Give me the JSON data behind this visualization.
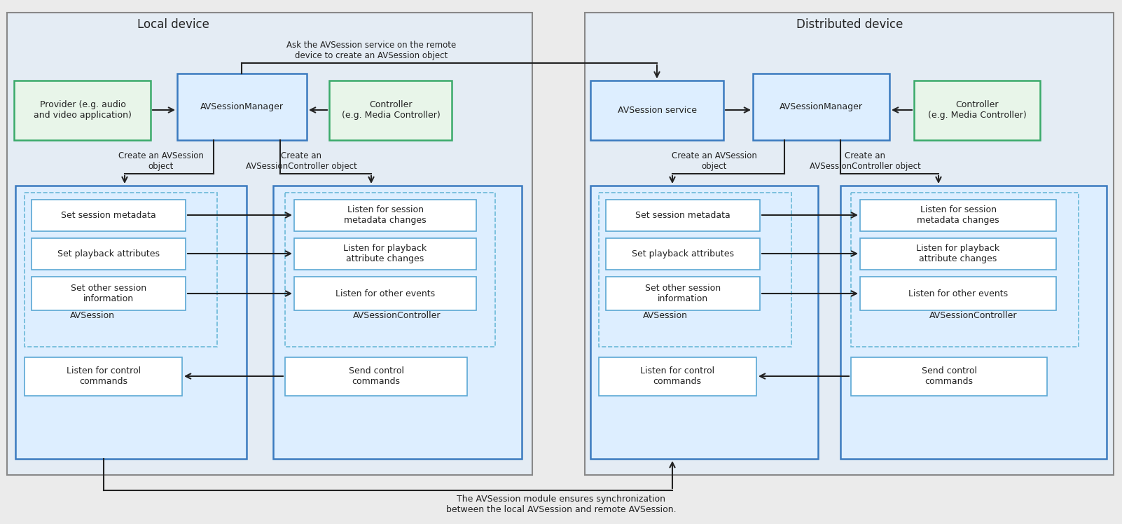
{
  "bg_color": "#ebebeb",
  "outer_fill": "#e4ecf4",
  "outer_edge": "#888888",
  "blue_fill": "#ddeeff",
  "blue_fill_mid": "#cce4f7",
  "white_fill": "#ffffff",
  "green_fill": "#e8f5e9",
  "border_blue": "#5ba8d4",
  "border_blue_dark": "#3a7abf",
  "border_green": "#3aaa6a",
  "border_dashed": "#6ab8d8",
  "arrow_color": "#222222",
  "text_color": "#222222",
  "local_title": "Local device",
  "dist_title": "Distributed device",
  "cross_arrow_text": "Ask the AVSession service on the remote\ndevice to create an AVSession object",
  "sync_text": "The AVSession module ensures synchronization\nbetween the local AVSession and remote AVSession."
}
